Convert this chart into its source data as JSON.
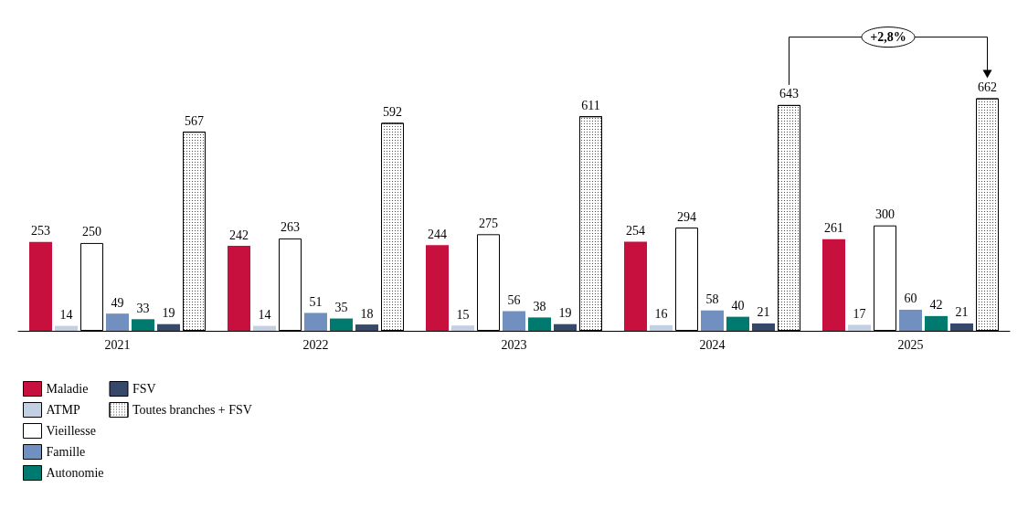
{
  "chart_data": {
    "type": "bar",
    "categories": [
      "2021",
      "2022",
      "2023",
      "2024",
      "2025"
    ],
    "series": [
      {
        "name": "Maladie",
        "color": "#c8103e",
        "values": [
          253,
          242,
          244,
          254,
          261
        ]
      },
      {
        "name": "ATMP",
        "color": "#c3cfe2",
        "values": [
          14,
          14,
          15,
          16,
          17
        ]
      },
      {
        "name": "Vieillesse",
        "color": "#ffffff",
        "values": [
          250,
          263,
          275,
          294,
          300
        ]
      },
      {
        "name": "Famille",
        "color": "#7190c0",
        "values": [
          49,
          51,
          56,
          58,
          60
        ]
      },
      {
        "name": "Autonomie",
        "color": "#007a6e",
        "values": [
          33,
          35,
          38,
          40,
          42
        ]
      },
      {
        "name": "FSV",
        "color": "#37496a",
        "values": [
          19,
          18,
          19,
          21,
          21
        ]
      },
      {
        "name": "Toutes branches + FSV",
        "color": "#ffffff",
        "values": [
          567,
          592,
          611,
          643,
          662
        ]
      }
    ],
    "annotations": [
      "+2,8%"
    ],
    "data_labels": true,
    "legend": "bottom left",
    "grid": false
  }
}
